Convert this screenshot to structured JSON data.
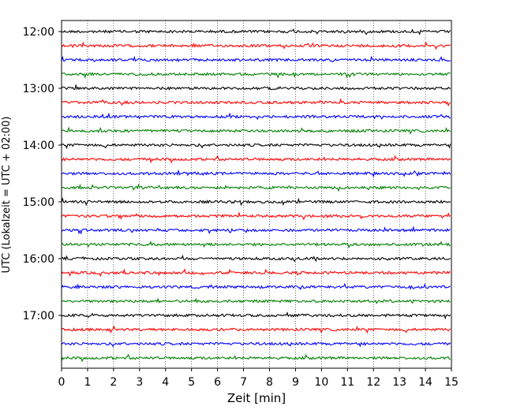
{
  "chart_data": {
    "type": "line",
    "title": "",
    "xlabel": "Zeit  [min]",
    "ylabel": "UTC (Lokalzeit = UTC + 02:00)",
    "xlim": [
      0,
      15
    ],
    "x_ticks": [
      0,
      1,
      2,
      3,
      4,
      5,
      6,
      7,
      8,
      9,
      10,
      11,
      12,
      13,
      14,
      15
    ],
    "x_tick_labels": [
      "0",
      "1",
      "2",
      "3",
      "4",
      "5",
      "6",
      "7",
      "8",
      "9",
      "10",
      "11",
      "12",
      "13",
      "14",
      "15"
    ],
    "y_ticks": [
      "12:00",
      "13:00",
      "14:00",
      "15:00",
      "16:00",
      "17:00"
    ],
    "grid": "vertical dotted lines at each minute",
    "legend": "none",
    "trace_interval_minutes": 15,
    "colors": [
      "#000000",
      "#ff0000",
      "#0000ff",
      "#008000"
    ],
    "series": [
      {
        "start": "12:00",
        "color": "#000000"
      },
      {
        "start": "12:15",
        "color": "#ff0000"
      },
      {
        "start": "12:30",
        "color": "#0000ff"
      },
      {
        "start": "12:45",
        "color": "#008000"
      },
      {
        "start": "13:00",
        "color": "#000000"
      },
      {
        "start": "13:15",
        "color": "#ff0000"
      },
      {
        "start": "13:30",
        "color": "#0000ff"
      },
      {
        "start": "13:45",
        "color": "#008000"
      },
      {
        "start": "14:00",
        "color": "#000000"
      },
      {
        "start": "14:15",
        "color": "#ff0000"
      },
      {
        "start": "14:30",
        "color": "#0000ff"
      },
      {
        "start": "14:45",
        "color": "#008000"
      },
      {
        "start": "15:00",
        "color": "#000000"
      },
      {
        "start": "15:15",
        "color": "#ff0000"
      },
      {
        "start": "15:30",
        "color": "#0000ff"
      },
      {
        "start": "15:45",
        "color": "#008000"
      },
      {
        "start": "16:00",
        "color": "#000000"
      },
      {
        "start": "16:15",
        "color": "#ff0000"
      },
      {
        "start": "16:30",
        "color": "#0000ff"
      },
      {
        "start": "16:45",
        "color": "#008000"
      },
      {
        "start": "17:00",
        "color": "#000000"
      },
      {
        "start": "17:15",
        "color": "#ff0000"
      },
      {
        "start": "17:30",
        "color": "#0000ff"
      },
      {
        "start": "17:45",
        "color": "#008000"
      }
    ]
  }
}
